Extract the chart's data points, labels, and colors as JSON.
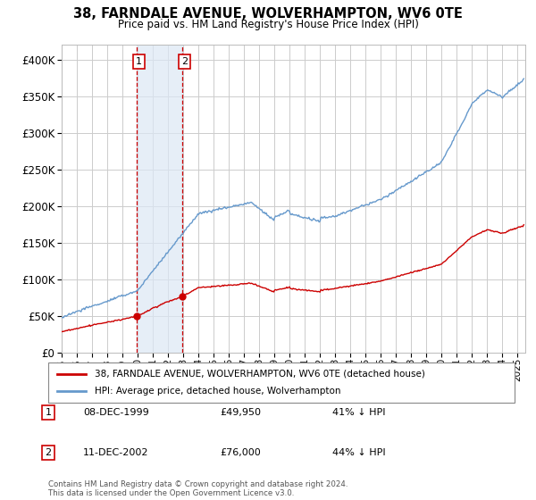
{
  "title": "38, FARNDALE AVENUE, WOLVERHAMPTON, WV6 0TE",
  "subtitle": "Price paid vs. HM Land Registry's House Price Index (HPI)",
  "legend_red": "38, FARNDALE AVENUE, WOLVERHAMPTON, WV6 0TE (detached house)",
  "legend_blue": "HPI: Average price, detached house, Wolverhampton",
  "footnote": "Contains HM Land Registry data © Crown copyright and database right 2024.\nThis data is licensed under the Open Government Licence v3.0.",
  "sale1_date": "08-DEC-1999",
  "sale1_price": "£49,950",
  "sale1_hpi": "41% ↓ HPI",
  "sale2_date": "11-DEC-2002",
  "sale2_price": "£76,000",
  "sale2_hpi": "44% ↓ HPI",
  "sale1_x": 1999.94,
  "sale1_y": 49950,
  "sale2_x": 2002.95,
  "sale2_y": 76000,
  "ylim": [
    0,
    420000
  ],
  "yticks": [
    0,
    50000,
    100000,
    150000,
    200000,
    250000,
    300000,
    350000,
    400000
  ],
  "background_color": "#ffffff",
  "plot_bg": "#ffffff",
  "grid_color": "#cccccc",
  "red_color": "#cc0000",
  "blue_color": "#6699cc",
  "shade_color": "#dce8f5",
  "dashed_red": "#cc0000",
  "title_color": "#000000",
  "x_start": 1995.0,
  "x_end": 2025.5,
  "x_ticks_start": 1995,
  "x_ticks_end": 2025
}
